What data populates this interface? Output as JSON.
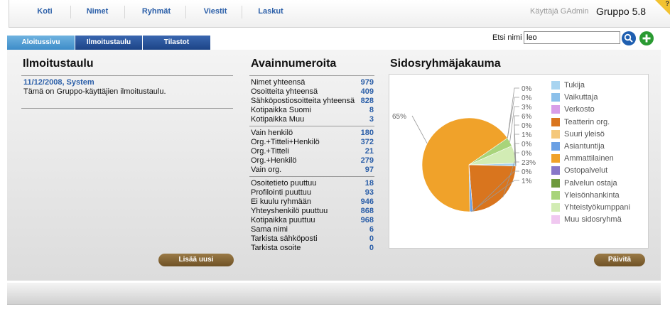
{
  "nav": {
    "items": [
      "Koti",
      "Nimet",
      "Ryhmät",
      "Viestit",
      "Laskut"
    ],
    "user": "Käyttäjä GAdmin",
    "app": "Gruppo 5.8",
    "help": "?"
  },
  "tabs": [
    {
      "label": "Aloitussivu",
      "active": true
    },
    {
      "label": "Ilmoitustaulu",
      "active": false
    },
    {
      "label": "Tilastot",
      "active": false
    }
  ],
  "search": {
    "label": "Etsi nimi",
    "value": "leo"
  },
  "board": {
    "title": "Ilmoitustaulu",
    "post_header": "11/12/2008, System",
    "post_body": "Tämä on Gruppo-käyttäjien ilmoitustaulu.",
    "add_button": "Lisää uusi"
  },
  "keys": {
    "title": "Avainnumeroita",
    "groups": [
      [
        {
          "label": "Nimet yhteensä",
          "value": "979"
        },
        {
          "label": "Osoitteita yhteensä",
          "value": "409"
        },
        {
          "label": "Sähköpostiosoitteita yhteensä",
          "value": "828"
        },
        {
          "label": "Kotipaikka Suomi",
          "value": "8"
        },
        {
          "label": "Kotipaikka Muu",
          "value": "3"
        }
      ],
      [
        {
          "label": "Vain henkilö",
          "value": "180"
        },
        {
          "label": "Org.+Titteli+Henkilö",
          "value": "372"
        },
        {
          "label": "Org.+Titteli",
          "value": "21"
        },
        {
          "label": "Org.+Henkilö",
          "value": "279"
        },
        {
          "label": "Vain org.",
          "value": "97"
        }
      ],
      [
        {
          "label": "Osoitetieto puuttuu",
          "value": "18"
        },
        {
          "label": "Profilointi puuttuu",
          "value": "93"
        },
        {
          "label": "Ei kuulu ryhmään",
          "value": "946"
        },
        {
          "label": "Yhteyshenkilö puuttuu",
          "value": "868"
        },
        {
          "label": "Kotipaikka puuttuu",
          "value": "968"
        },
        {
          "label": "Sama nimi",
          "value": "6"
        },
        {
          "label": "Tarkista sähköposti",
          "value": "0"
        },
        {
          "label": "Tarkista osoite",
          "value": "0"
        }
      ]
    ]
  },
  "distribution": {
    "title": "Sidosryhmäjakauma",
    "refresh_button": "Päivitä"
  },
  "chart_data": {
    "type": "pie",
    "title": "",
    "legend_position": "right",
    "slices": [
      {
        "name": "Tukija",
        "value": 1,
        "label": "1%",
        "color": "#a8d4f0"
      },
      {
        "name": "Vaikuttaja",
        "value": 0,
        "label": "0%",
        "color": "#8cc0ea"
      },
      {
        "name": "Verkosto",
        "value": 0,
        "label": "0%",
        "color": "#d89ee8"
      },
      {
        "name": "Teatterin org.",
        "value": 23,
        "label": "23%",
        "color": "#d9751e"
      },
      {
        "name": "Suuri yleisö",
        "value": 0,
        "label": "0%",
        "color": "#f5c87a"
      },
      {
        "name": "Asiantuntija",
        "value": 1,
        "label": "1%",
        "color": "#6aa0e4"
      },
      {
        "name": "Ammattilainen",
        "value": 65,
        "label": "65%",
        "color": "#f0a22a"
      },
      {
        "name": "Ostopalvelut",
        "value": 0,
        "label": "0%",
        "color": "#8878c8"
      },
      {
        "name": "Palvelun ostaja",
        "value": 0,
        "label": "0%",
        "color": "#6e9a3c"
      },
      {
        "name": "Yleisönhankinta",
        "value": 3,
        "label": "3%",
        "color": "#a8d47a"
      },
      {
        "name": "Yhteistyökumppani",
        "value": 6,
        "label": "6%",
        "color": "#d2ecb4"
      },
      {
        "name": "Muu sidosryhmä",
        "value": 0,
        "label": "0%",
        "color": "#f0c8f0"
      }
    ]
  }
}
